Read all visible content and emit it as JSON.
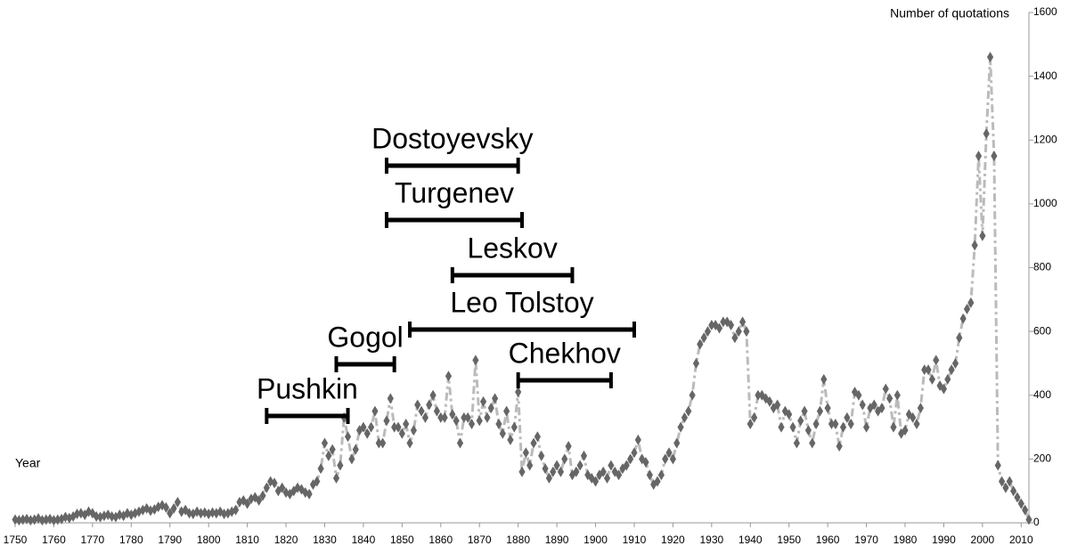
{
  "chart_data": {
    "type": "line",
    "x_label": "Year",
    "y_label": "Number of quotations",
    "x": [
      1750,
      1751,
      1752,
      1753,
      1754,
      1755,
      1756,
      1757,
      1758,
      1759,
      1760,
      1761,
      1762,
      1763,
      1764,
      1765,
      1766,
      1767,
      1768,
      1769,
      1770,
      1771,
      1772,
      1773,
      1774,
      1775,
      1776,
      1777,
      1778,
      1779,
      1780,
      1781,
      1782,
      1783,
      1784,
      1785,
      1786,
      1787,
      1788,
      1789,
      1790,
      1791,
      1792,
      1793,
      1794,
      1795,
      1796,
      1797,
      1798,
      1799,
      1800,
      1801,
      1802,
      1803,
      1804,
      1805,
      1806,
      1807,
      1808,
      1809,
      1810,
      1811,
      1812,
      1813,
      1814,
      1815,
      1816,
      1817,
      1818,
      1819,
      1820,
      1821,
      1822,
      1823,
      1824,
      1825,
      1826,
      1827,
      1828,
      1829,
      1830,
      1831,
      1832,
      1833,
      1834,
      1835,
      1836,
      1837,
      1838,
      1839,
      1840,
      1841,
      1842,
      1843,
      1844,
      1845,
      1846,
      1847,
      1848,
      1849,
      1850,
      1851,
      1852,
      1853,
      1854,
      1855,
      1856,
      1857,
      1858,
      1859,
      1860,
      1861,
      1862,
      1863,
      1864,
      1865,
      1866,
      1867,
      1868,
      1869,
      1870,
      1871,
      1872,
      1873,
      1874,
      1875,
      1876,
      1877,
      1878,
      1879,
      1880,
      1881,
      1882,
      1883,
      1884,
      1885,
      1886,
      1887,
      1888,
      1889,
      1890,
      1891,
      1892,
      1893,
      1894,
      1895,
      1896,
      1897,
      1898,
      1899,
      1900,
      1901,
      1902,
      1903,
      1904,
      1905,
      1906,
      1907,
      1908,
      1909,
      1910,
      1911,
      1912,
      1913,
      1914,
      1915,
      1916,
      1917,
      1918,
      1919,
      1920,
      1921,
      1922,
      1923,
      1924,
      1925,
      1926,
      1927,
      1928,
      1929,
      1930,
      1931,
      1932,
      1933,
      1934,
      1935,
      1936,
      1937,
      1938,
      1939,
      1940,
      1941,
      1942,
      1943,
      1944,
      1945,
      1946,
      1947,
      1948,
      1949,
      1950,
      1951,
      1952,
      1953,
      1954,
      1955,
      1956,
      1957,
      1958,
      1959,
      1960,
      1961,
      1962,
      1963,
      1964,
      1965,
      1966,
      1967,
      1968,
      1969,
      1970,
      1971,
      1972,
      1973,
      1974,
      1975,
      1976,
      1977,
      1978,
      1979,
      1980,
      1981,
      1982,
      1983,
      1984,
      1985,
      1986,
      1987,
      1988,
      1989,
      1990,
      1991,
      1992,
      1993,
      1994,
      1995,
      1996,
      1997,
      1998,
      1999,
      2000,
      2001,
      2002,
      2003,
      2004,
      2005,
      2006,
      2007,
      2008,
      2009,
      2010,
      2011,
      2012
    ],
    "series": [
      {
        "color": "#666666",
        "line_color": "#bbbbbb",
        "values": [
          10,
          8,
          10,
          12,
          8,
          10,
          14,
          8,
          10,
          12,
          8,
          10,
          12,
          18,
          15,
          20,
          28,
          30,
          25,
          35,
          30,
          20,
          18,
          22,
          25,
          20,
          18,
          25,
          22,
          30,
          25,
          30,
          35,
          40,
          45,
          38,
          42,
          50,
          55,
          48,
          30,
          45,
          65,
          35,
          40,
          30,
          28,
          35,
          30,
          32,
          28,
          32,
          30,
          35,
          28,
          30,
          35,
          40,
          65,
          70,
          60,
          75,
          80,
          70,
          85,
          110,
          130,
          125,
          100,
          110,
          95,
          90,
          100,
          110,
          105,
          95,
          90,
          120,
          130,
          170,
          250,
          210,
          230,
          140,
          180,
          330,
          270,
          200,
          230,
          290,
          300,
          280,
          300,
          350,
          250,
          250,
          320,
          390,
          300,
          300,
          280,
          310,
          250,
          290,
          370,
          350,
          330,
          370,
          400,
          350,
          330,
          330,
          460,
          340,
          320,
          250,
          330,
          330,
          310,
          510,
          320,
          380,
          330,
          360,
          390,
          310,
          280,
          350,
          260,
          300,
          410,
          160,
          220,
          180,
          250,
          270,
          210,
          170,
          140,
          160,
          180,
          160,
          200,
          240,
          150,
          160,
          180,
          210,
          150,
          140,
          130,
          150,
          160,
          140,
          180,
          160,
          150,
          170,
          180,
          200,
          220,
          260,
          200,
          190,
          150,
          120,
          130,
          150,
          200,
          220,
          200,
          250,
          300,
          330,
          350,
          400,
          500,
          560,
          580,
          600,
          620,
          620,
          610,
          630,
          630,
          620,
          580,
          600,
          630,
          600,
          310,
          330,
          400,
          400,
          390,
          380,
          360,
          370,
          300,
          350,
          340,
          300,
          250,
          320,
          350,
          290,
          250,
          310,
          350,
          450,
          360,
          310,
          310,
          240,
          300,
          330,
          310,
          410,
          400,
          370,
          300,
          360,
          370,
          350,
          360,
          420,
          390,
          300,
          400,
          280,
          290,
          340,
          330,
          310,
          360,
          480,
          480,
          450,
          510,
          430,
          420,
          450,
          480,
          500,
          580,
          640,
          670,
          690,
          870,
          1150,
          900,
          1220,
          1460,
          1150,
          180,
          130,
          110,
          130,
          100,
          80,
          60,
          40,
          10
        ]
      }
    ],
    "xlim": [
      1750,
      2012
    ],
    "xticks": [
      1750,
      1760,
      1770,
      1780,
      1790,
      1800,
      1810,
      1820,
      1830,
      1840,
      1850,
      1860,
      1870,
      1880,
      1890,
      1900,
      1910,
      1920,
      1930,
      1940,
      1950,
      1960,
      1970,
      1980,
      1990,
      2000,
      2010
    ],
    "ylim": [
      0,
      1600
    ],
    "yticks": [
      0,
      200,
      400,
      600,
      800,
      1000,
      1200,
      1400,
      1600
    ],
    "annotations": [
      {
        "label": "Dostoyevsky",
        "start": 1846,
        "end": 1880
      },
      {
        "label": "Turgenev",
        "start": 1846,
        "end": 1881
      },
      {
        "label": "Leskov",
        "start": 1863,
        "end": 1894
      },
      {
        "label": "Leo Tolstoy",
        "start": 1852,
        "end": 1910
      },
      {
        "label": "Gogol",
        "start": 1833,
        "end": 1848
      },
      {
        "label": "Chekhov",
        "start": 1880,
        "end": 1904
      },
      {
        "label": "Pushkin",
        "start": 1815,
        "end": 1836
      }
    ]
  }
}
